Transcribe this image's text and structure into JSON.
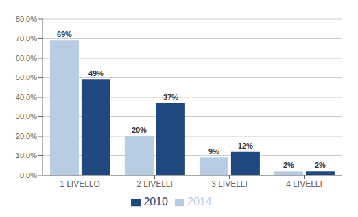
{
  "chart_data": {
    "type": "bar",
    "categories": [
      "1 LIVELLO",
      "2 LIVELLI",
      "3 LIVELLI",
      "4 LIVELLI"
    ],
    "series": [
      {
        "name": "2014",
        "color": "#b8cce4",
        "values": [
          69,
          20,
          9,
          2
        ],
        "value_labels": [
          "69%",
          "20%",
          "9%",
          "2%"
        ]
      },
      {
        "name": "2010",
        "color": "#1f497d",
        "values": [
          49,
          37,
          12,
          2
        ],
        "value_labels": [
          "49%",
          "37%",
          "12%",
          "2%"
        ]
      }
    ],
    "ylim": [
      0,
      80
    ],
    "yticks": [
      {
        "value": 0,
        "label": "0,0%"
      },
      {
        "value": 10,
        "label": "10,0%"
      },
      {
        "value": 20,
        "label": "20,0%"
      },
      {
        "value": 30,
        "label": "30,0%"
      },
      {
        "value": 40,
        "label": "40,0%"
      },
      {
        "value": 50,
        "label": "50,0%"
      },
      {
        "value": 60,
        "label": "60,0%"
      },
      {
        "value": 70,
        "label": "70,0%"
      },
      {
        "value": 80,
        "label": "80,0%"
      }
    ],
    "grid": true,
    "legend": "bottom",
    "data_labels": true
  }
}
